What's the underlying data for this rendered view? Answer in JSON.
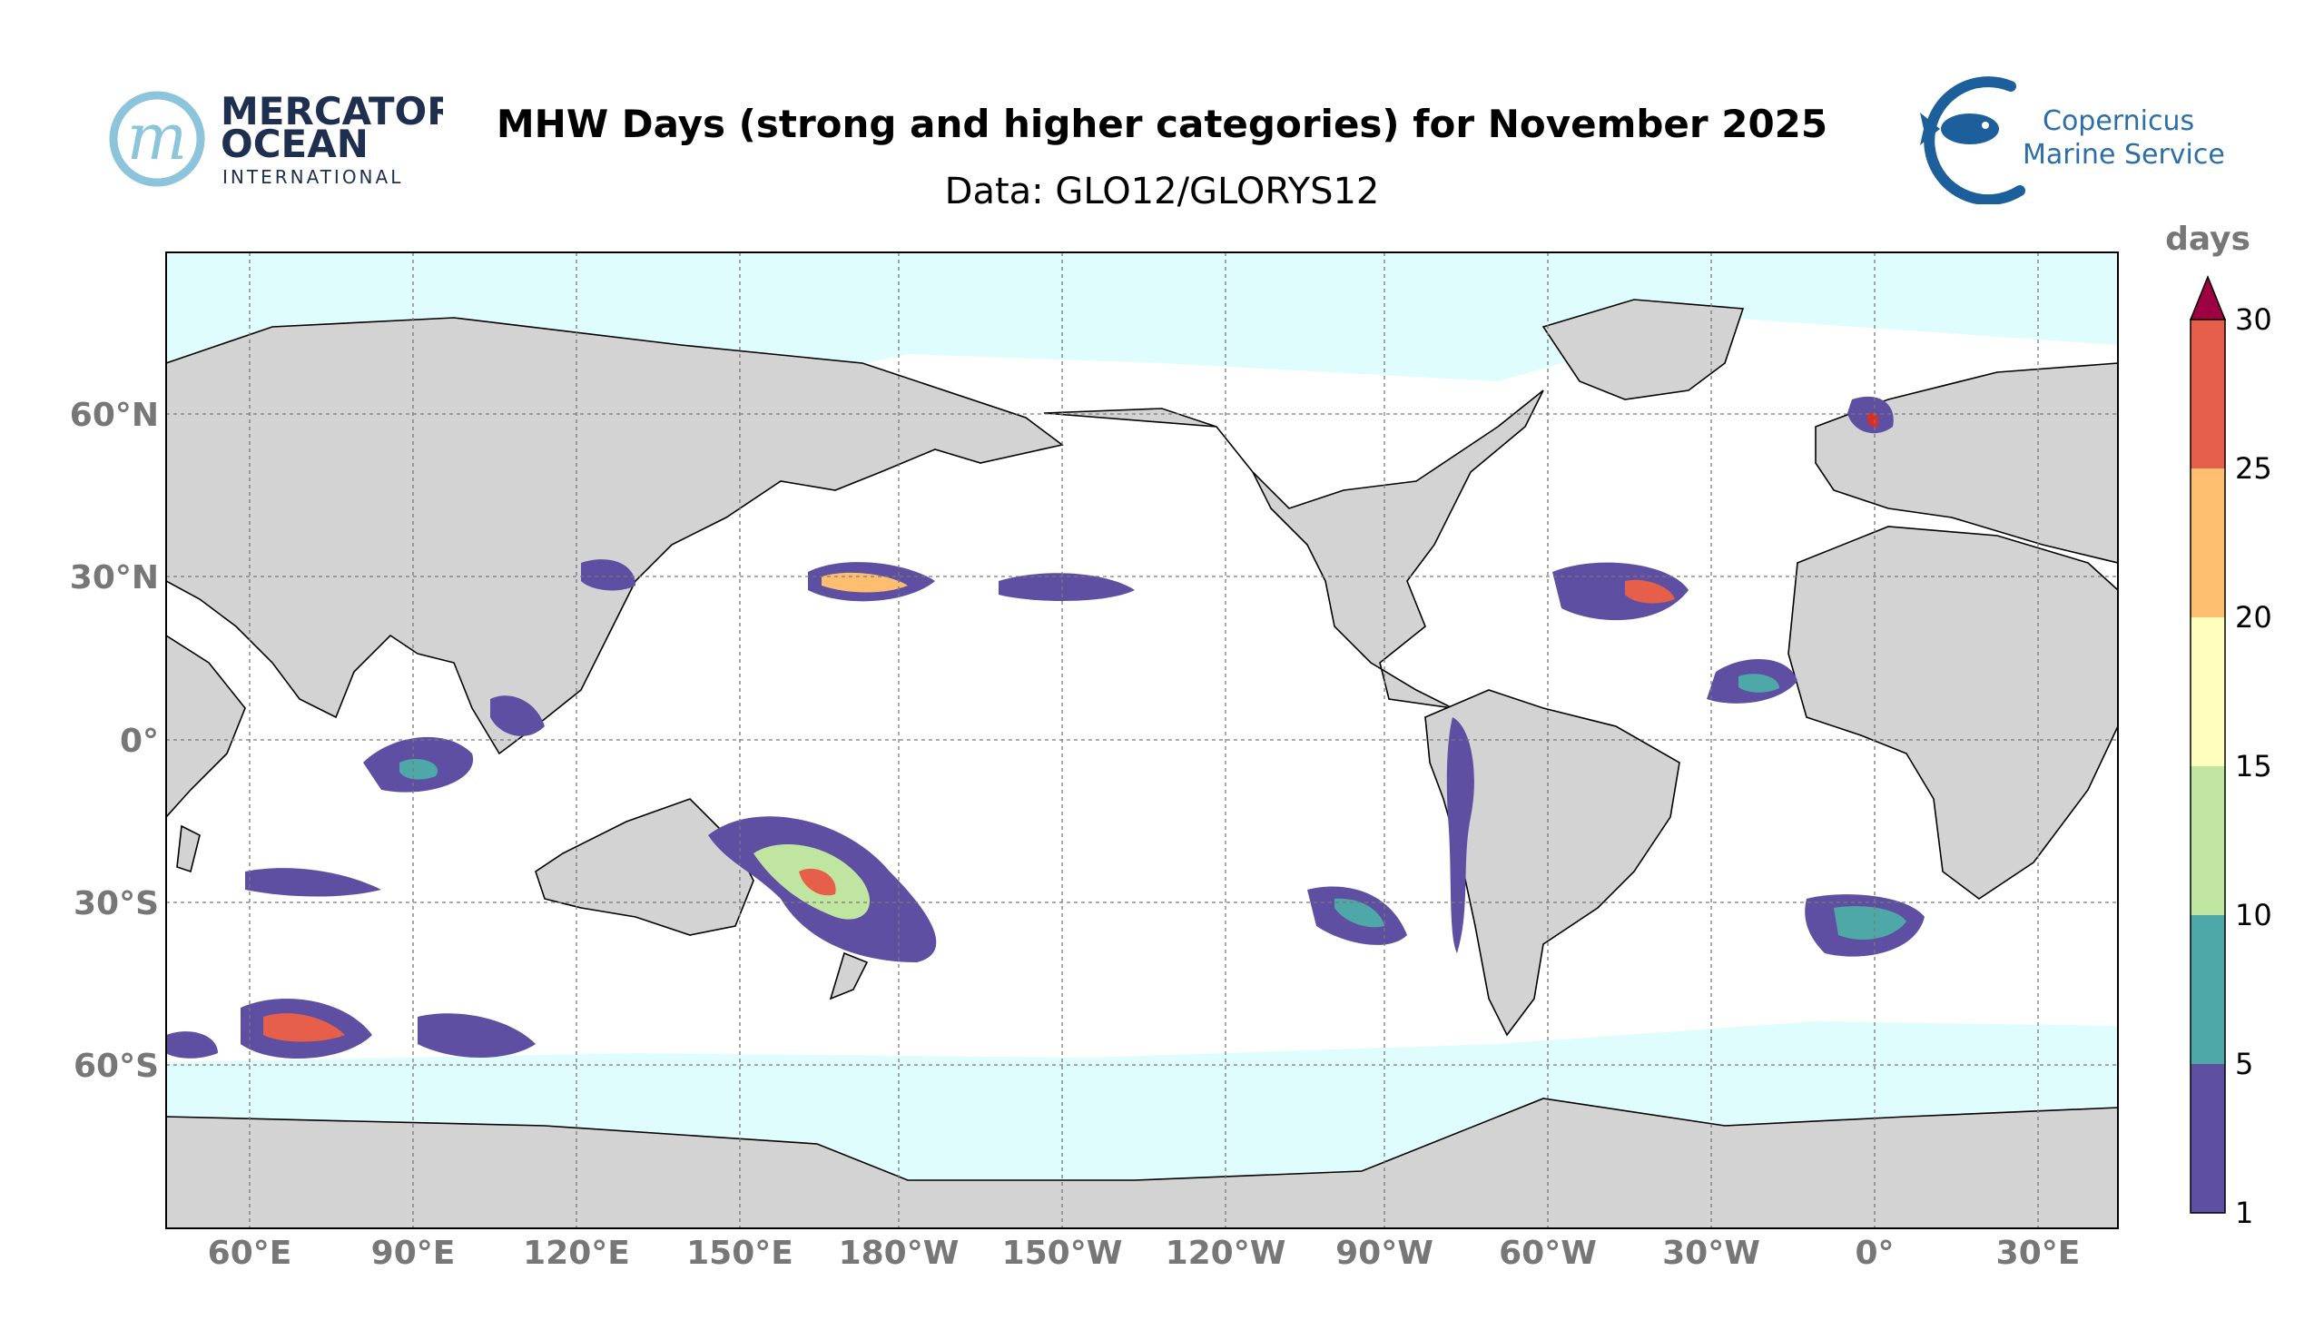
{
  "title": "MHW Days (strong and higher categories) for November 2025",
  "subtitle": "Data: GLO12/GLORYS12",
  "logos": {
    "left": {
      "line1": "MERCATOR",
      "line2": "OCEAN",
      "line3": "INTERNATIONAL",
      "mark": "m"
    },
    "right": {
      "line1": "Copernicus",
      "line2": "Marine Service",
      "icon": "fish-icon"
    }
  },
  "map": {
    "lon_labels": [
      "60°E",
      "90°E",
      "120°E",
      "150°E",
      "180°W",
      "150°W",
      "120°W",
      "90°W",
      "60°W",
      "30°W",
      "0°",
      "30°E"
    ],
    "lat_labels": [
      "60°N",
      "30°N",
      "0°",
      "30°S",
      "60°S"
    ]
  },
  "colorbar": {
    "label": "days",
    "ticks": [
      "1",
      "5",
      "10",
      "15",
      "20",
      "25",
      "30"
    ],
    "colors": [
      "#5e4fa2",
      "#4fa8a8",
      "#bfe5a0",
      "#fffebd",
      "#fdbf6f",
      "#e55f4a",
      "#d73027"
    ],
    "extend_color": "#9e0142"
  },
  "colors": {
    "land": "#d3d3d3",
    "sea_ice": "#e0fdfd",
    "ocean": "#ffffff"
  }
}
